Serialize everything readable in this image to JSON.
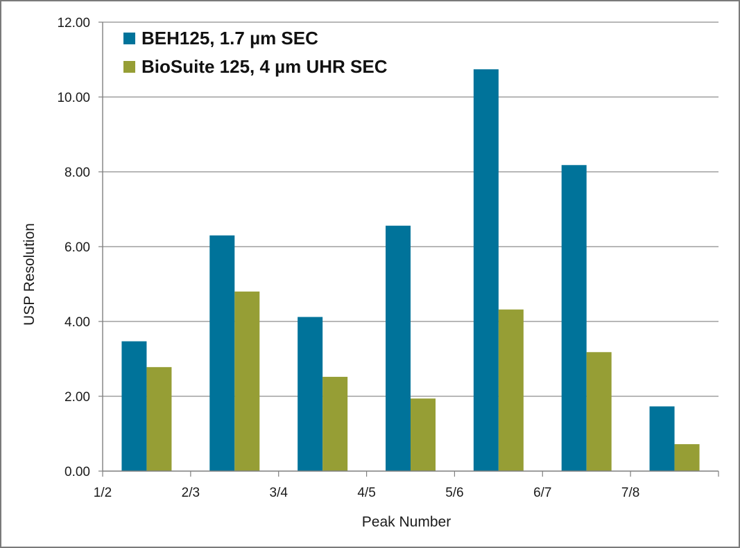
{
  "chart_data": {
    "type": "bar",
    "title": "",
    "xlabel": "Peak Number",
    "ylabel": "USP Resolution",
    "ylim": [
      0,
      12
    ],
    "yticks": [
      "0.00",
      "2.00",
      "4.00",
      "6.00",
      "8.00",
      "10.00",
      "12.00"
    ],
    "categories": [
      "1/2",
      "2/3",
      "3/4",
      "4/5",
      "5/6",
      "6/7",
      "7/8"
    ],
    "series": [
      {
        "name": "BEH125, 1.7 µm SEC",
        "color": "#00739a",
        "values": [
          3.47,
          6.3,
          4.12,
          6.56,
          10.74,
          8.18,
          1.73
        ]
      },
      {
        "name": "BioSuite 125, 4 µm UHR SEC",
        "color": "#969e35",
        "values": [
          2.78,
          4.8,
          2.52,
          1.94,
          4.32,
          3.18,
          0.72
        ]
      }
    ],
    "grid": true,
    "legend": "top-left"
  }
}
